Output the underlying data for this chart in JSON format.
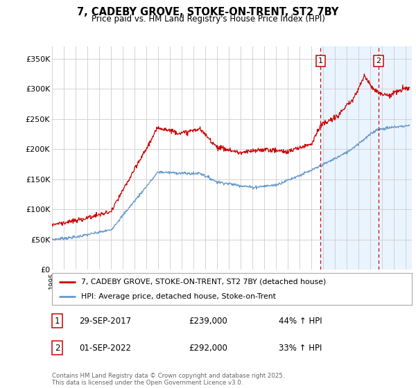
{
  "title": "7, CADEBY GROVE, STOKE-ON-TRENT, ST2 7BY",
  "subtitle": "Price paid vs. HM Land Registry's House Price Index (HPI)",
  "ylabel_ticks": [
    "£0",
    "£50K",
    "£100K",
    "£150K",
    "£200K",
    "£250K",
    "£300K",
    "£350K"
  ],
  "ylim": [
    0,
    370000
  ],
  "xlim_start": 1995,
  "xlim_end": 2025.5,
  "legend_line1": "7, CADEBY GROVE, STOKE-ON-TRENT, ST2 7BY (detached house)",
  "legend_line2": "HPI: Average price, detached house, Stoke-on-Trent",
  "marker1_date": "29-SEP-2017",
  "marker1_price": "£239,000",
  "marker1_hpi": "44% ↑ HPI",
  "marker1_x": 2017.75,
  "marker2_date": "01-SEP-2022",
  "marker2_price": "£292,000",
  "marker2_hpi": "33% ↑ HPI",
  "marker2_x": 2022.67,
  "red_color": "#cc0000",
  "blue_color": "#6699cc",
  "background_color": "#ffffff",
  "grid_color": "#cccccc",
  "shade_color": "#ddeeff",
  "footer": "Contains HM Land Registry data © Crown copyright and database right 2025.\nThis data is licensed under the Open Government Licence v3.0."
}
